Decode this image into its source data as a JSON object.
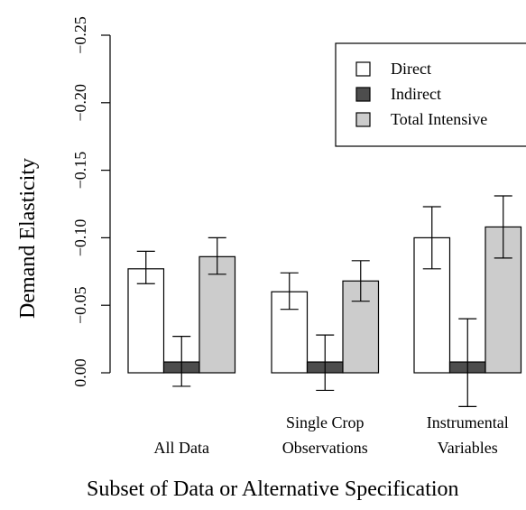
{
  "chart_data": {
    "type": "bar",
    "title": "",
    "xlabel": "Subset of Data or Alternative Specification",
    "ylabel": "Demand Elasticity",
    "ylim": [
      0,
      -0.25
    ],
    "yticks": [
      0.0,
      -0.05,
      -0.1,
      -0.15,
      -0.2,
      -0.25
    ],
    "ytick_labels": [
      "0.00",
      "−0.05",
      "−0.10",
      "−0.15",
      "−0.20",
      "−0.25"
    ],
    "grid": false,
    "legend_position": "top-right",
    "categories": [
      [
        "All Data"
      ],
      [
        "Single Crop",
        "Observations"
      ],
      [
        "Instrumental",
        "Variables"
      ]
    ],
    "series": [
      {
        "name": "Direct",
        "color": "#ffffff",
        "values": [
          -0.077,
          -0.06,
          -0.1
        ],
        "err_low": [
          -0.066,
          -0.047,
          -0.077
        ],
        "err_high": [
          -0.09,
          -0.074,
          -0.123
        ]
      },
      {
        "name": "Indirect",
        "color": "#4d4d4d",
        "values": [
          -0.008,
          -0.008,
          -0.008
        ],
        "err_low": [
          0.01,
          0.013,
          0.025
        ],
        "err_high": [
          -0.027,
          -0.028,
          -0.04
        ]
      },
      {
        "name": "Total Intensive",
        "color": "#cccccc",
        "values": [
          -0.086,
          -0.068,
          -0.108
        ],
        "err_low": [
          -0.073,
          -0.053,
          -0.085
        ],
        "err_high": [
          -0.1,
          -0.083,
          -0.131
        ]
      }
    ]
  }
}
